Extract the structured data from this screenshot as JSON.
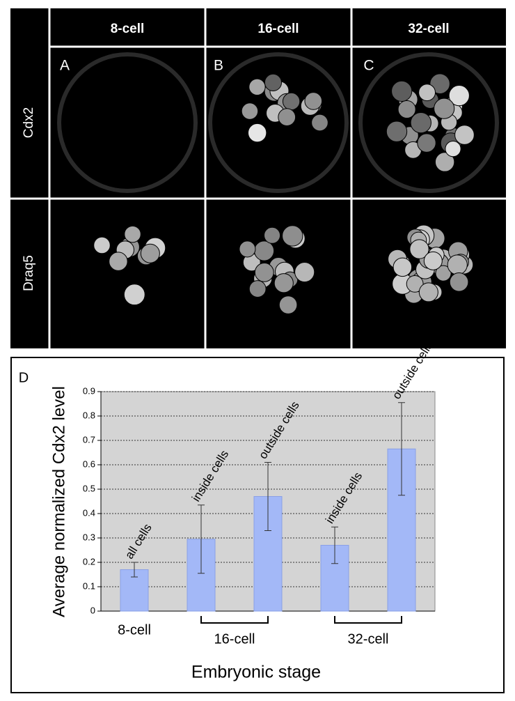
{
  "figure": {
    "columns": [
      "8-cell",
      "16-cell",
      "32-cell"
    ],
    "rows": [
      "Cdx2",
      "Draq5"
    ],
    "panels": [
      "A",
      "B",
      "C"
    ]
  },
  "chart_data": {
    "type": "bar",
    "panel": "D",
    "y_label": "Average normalized Cdx2 level",
    "x_label": "Embryonic stage",
    "categories": [
      "all cells",
      "inside cells",
      "outside cells",
      "inside cells",
      "outside cells"
    ],
    "values": [
      0.17,
      0.295,
      0.47,
      0.27,
      0.665
    ],
    "errors": [
      0.03,
      0.14,
      0.14,
      0.075,
      0.19
    ],
    "groups": [
      "8-cell",
      "16-cell",
      "32-cell"
    ],
    "color": "#a3b8f7",
    "ylim": [
      0,
      0.9
    ],
    "yticks": [
      0,
      0.1,
      0.2,
      0.3,
      0.4,
      0.5,
      0.6,
      0.7,
      0.8,
      0.9
    ],
    "grid": true
  }
}
